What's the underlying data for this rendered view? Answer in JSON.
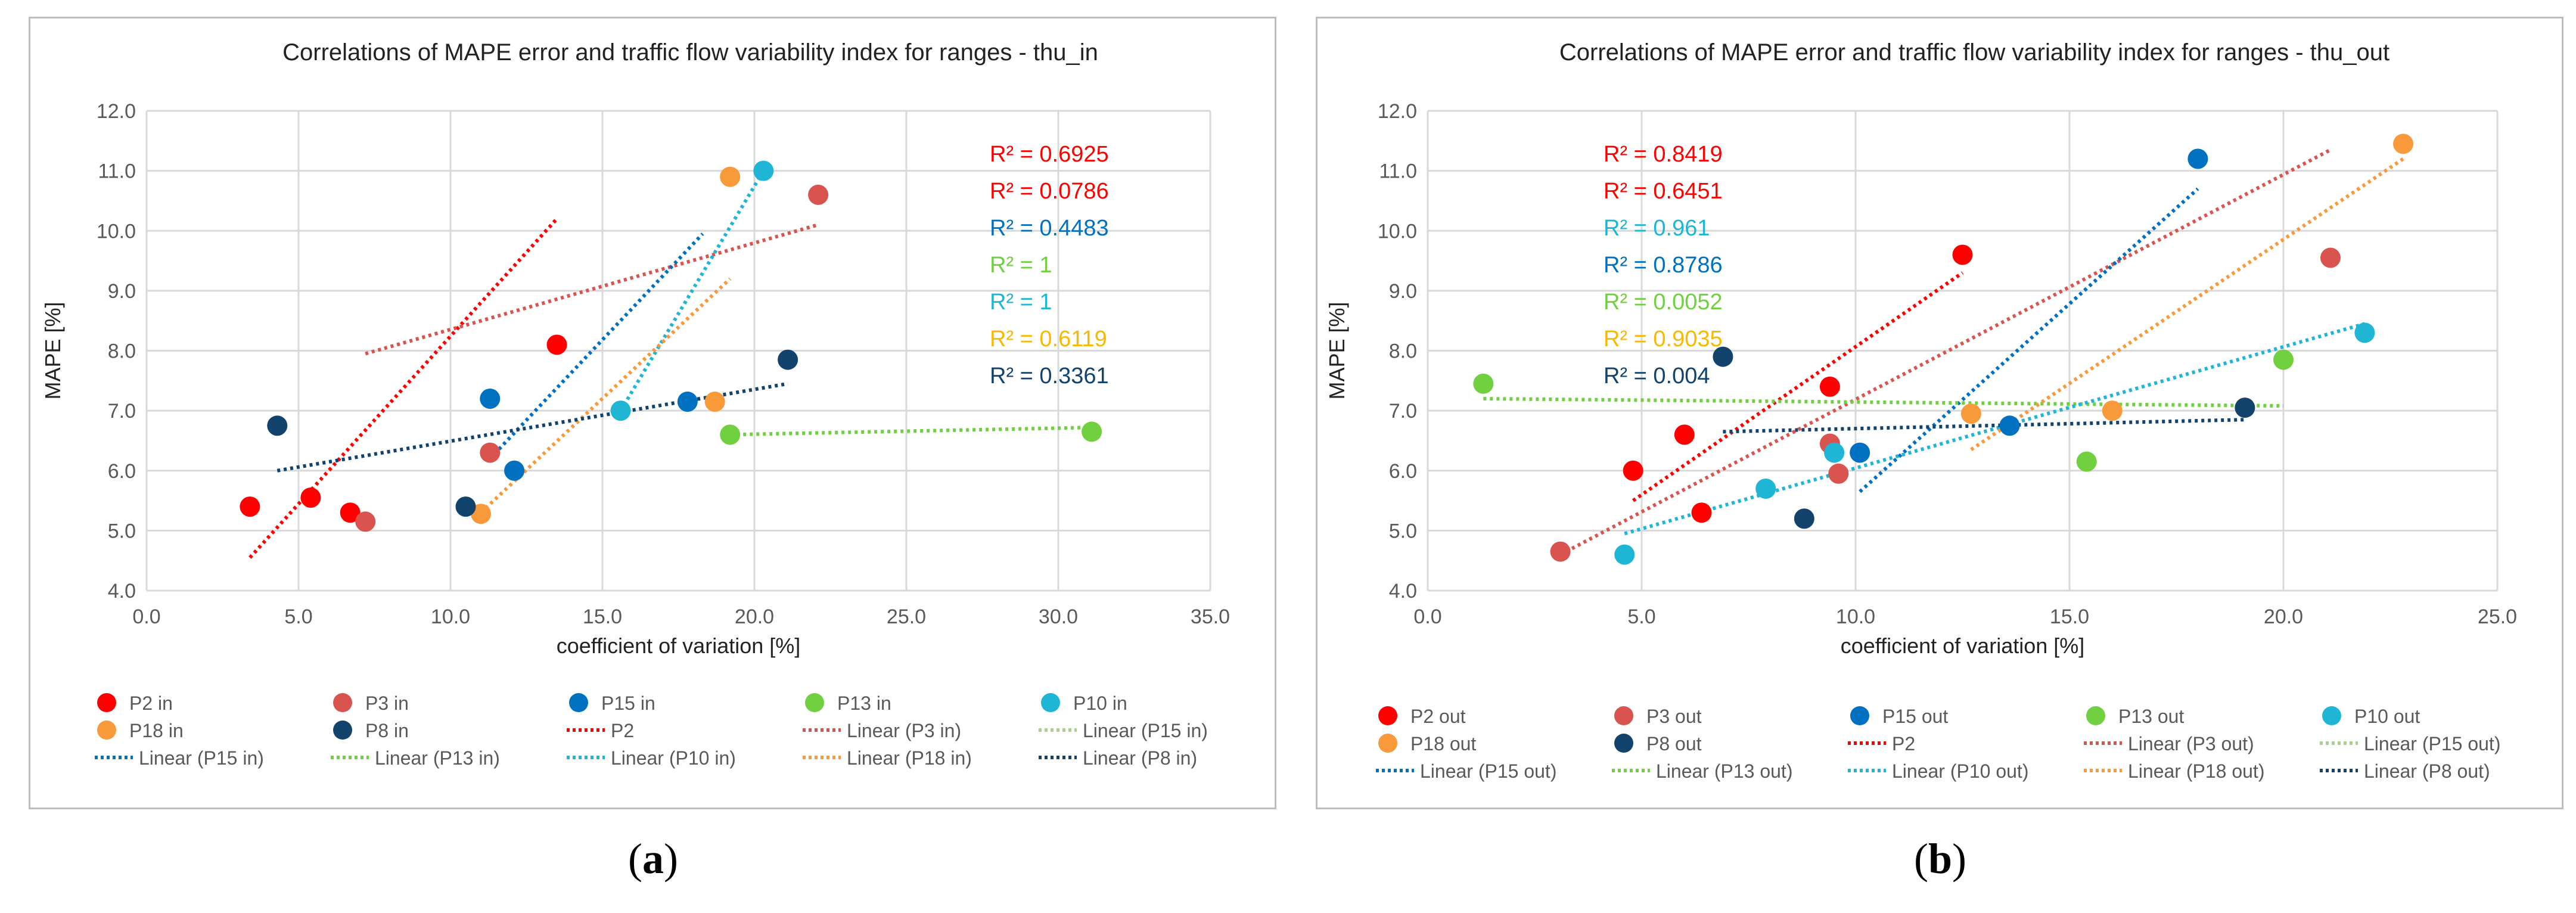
{
  "sublabels": {
    "a": "a",
    "b": "b",
    "open": "(",
    "close": ")"
  },
  "chart_data": [
    {
      "type": "scatter",
      "title": "Correlations of MAPE error and traffic flow variability index for ranges - thu_in",
      "xlabel": "coefficient of variation [%]",
      "ylabel": "MAPE [%]",
      "xlim": [
        0,
        35
      ],
      "ylim": [
        4,
        12
      ],
      "xticks": [
        "0.0",
        "5.0",
        "10.0",
        "15.0",
        "20.0",
        "25.0",
        "30.0",
        "35.0"
      ],
      "yticks": [
        "4.0",
        "5.0",
        "6.0",
        "7.0",
        "8.0",
        "9.0",
        "10.0",
        "11.0",
        "12.0"
      ],
      "series": [
        {
          "name": "P2 in",
          "color": "#ff0000",
          "points": [
            [
              3.4,
              5.4
            ],
            [
              5.4,
              5.55
            ],
            [
              6.7,
              5.3
            ],
            [
              13.5,
              8.1
            ]
          ],
          "trend": [
            [
              3.4,
              4.55
            ],
            [
              13.5,
              10.2
            ]
          ]
        },
        {
          "name": "P3 in",
          "color": "#d9534f",
          "points": [
            [
              7.2,
              5.15
            ],
            [
              11.3,
              6.3
            ],
            [
              22.1,
              10.6
            ]
          ],
          "trend": [
            [
              7.2,
              7.95
            ],
            [
              22.1,
              10.1
            ]
          ]
        },
        {
          "name": "P15 in",
          "color": "#0070c0",
          "points": [
            [
              11.3,
              7.2
            ],
            [
              12.1,
              6.0
            ],
            [
              17.8,
              7.15
            ]
          ],
          "trend": [
            [
              11.3,
              6.2
            ],
            [
              18.3,
              9.95
            ]
          ]
        },
        {
          "name": "P13 in",
          "color": "#70d040",
          "points": [
            [
              19.2,
              6.6
            ],
            [
              31.1,
              6.65
            ]
          ],
          "trend": [
            [
              19.2,
              6.6
            ],
            [
              31.1,
              6.72
            ]
          ]
        },
        {
          "name": "P10 in",
          "color": "#1fb5d5",
          "points": [
            [
              15.6,
              7.0
            ],
            [
              20.3,
              11.0
            ]
          ],
          "trend": [
            [
              15.6,
              7.0
            ],
            [
              20.3,
              11.0
            ]
          ]
        },
        {
          "name": "P18 in",
          "color": "#f8993a",
          "points": [
            [
              11.0,
              5.28
            ],
            [
              18.7,
              7.15
            ],
            [
              19.2,
              10.9
            ]
          ],
          "trend": [
            [
              11.0,
              5.3
            ],
            [
              19.2,
              9.2
            ]
          ]
        },
        {
          "name": "P8 in",
          "color": "#12436d",
          "points": [
            [
              4.3,
              6.75
            ],
            [
              10.5,
              5.4
            ],
            [
              21.1,
              7.85
            ]
          ],
          "trend": [
            [
              4.3,
              6.0
            ],
            [
              21.1,
              7.45
            ]
          ]
        }
      ],
      "r2": [
        {
          "text": "R² = 0.6925",
          "color": "#ff0000"
        },
        {
          "text": "R² = 0.0786",
          "color": "#ff0000"
        },
        {
          "text": "R² = 0.4483",
          "color": "#0070c0"
        },
        {
          "text": "R² = 1",
          "color": "#70d040"
        },
        {
          "text": "R² = 1",
          "color": "#1fb5d5"
        },
        {
          "text": "R² = 0.6119",
          "color": "#f8b900"
        },
        {
          "text": "R² = 0.3361",
          "color": "#12436d"
        }
      ],
      "legend_position": "bottom",
      "legend": [
        {
          "label": "P2 in",
          "kind": "marker",
          "color": "#ff0000"
        },
        {
          "label": "P3 in",
          "kind": "marker",
          "color": "#d9534f"
        },
        {
          "label": "P15 in",
          "kind": "marker",
          "color": "#0070c0"
        },
        {
          "label": "P13 in",
          "kind": "marker",
          "color": "#70d040"
        },
        {
          "label": "P10 in",
          "kind": "marker",
          "color": "#1fb5d5"
        },
        {
          "label": "P18 in",
          "kind": "marker",
          "color": "#f8993a"
        },
        {
          "label": "P8 in",
          "kind": "marker",
          "color": "#12436d"
        },
        {
          "label": "P2",
          "kind": "line",
          "color": "#ff0000"
        },
        {
          "label": "Linear (P3 in)",
          "kind": "line",
          "color": "#d9534f"
        },
        {
          "label": "Linear (P15 in)",
          "kind": "line",
          "color": "#a9d18e"
        },
        {
          "label": "Linear (P15 in)",
          "kind": "line",
          "color": "#0070c0"
        },
        {
          "label": "Linear (P13 in)",
          "kind": "line",
          "color": "#70d040"
        },
        {
          "label": "Linear (P10 in)",
          "kind": "line",
          "color": "#1fb5d5"
        },
        {
          "label": "Linear (P18 in)",
          "kind": "line",
          "color": "#f8993a"
        },
        {
          "label": "Linear (P8 in)",
          "kind": "line",
          "color": "#12436d"
        }
      ]
    },
    {
      "type": "scatter",
      "title": "Correlations of MAPE error and traffic flow variability index for ranges - thu_out",
      "xlabel": "coefficient of variation [%]",
      "ylabel": "MAPE [%]",
      "xlim": [
        0,
        25
      ],
      "ylim": [
        4,
        12
      ],
      "xticks": [
        "0.0",
        "5.0",
        "10.0",
        "15.0",
        "20.0",
        "25.0"
      ],
      "yticks": [
        "4.0",
        "5.0",
        "6.0",
        "7.0",
        "8.0",
        "9.0",
        "10.0",
        "11.0",
        "12.0"
      ],
      "series": [
        {
          "name": "P2 out",
          "color": "#ff0000",
          "points": [
            [
              4.8,
              6.0
            ],
            [
              6.0,
              6.6
            ],
            [
              6.4,
              5.3
            ],
            [
              9.4,
              7.4
            ],
            [
              12.5,
              9.6
            ]
          ],
          "trend": [
            [
              4.8,
              5.5
            ],
            [
              12.5,
              9.3
            ]
          ]
        },
        {
          "name": "P3 out",
          "color": "#d9534f",
          "points": [
            [
              3.1,
              4.65
            ],
            [
              9.4,
              6.45
            ],
            [
              9.6,
              5.95
            ],
            [
              21.1,
              9.55
            ]
          ],
          "trend": [
            [
              3.1,
              4.6
            ],
            [
              21.1,
              11.35
            ]
          ]
        },
        {
          "name": "P15 out",
          "color": "#0070c0",
          "points": [
            [
              10.1,
              6.3
            ],
            [
              13.6,
              6.75
            ],
            [
              18.0,
              11.2
            ]
          ],
          "trend": [
            [
              10.1,
              5.65
            ],
            [
              18.0,
              10.7
            ]
          ]
        },
        {
          "name": "P13 out",
          "color": "#70d040",
          "points": [
            [
              1.3,
              7.45
            ],
            [
              15.4,
              6.15
            ],
            [
              20.0,
              7.85
            ]
          ],
          "trend": [
            [
              1.3,
              7.2
            ],
            [
              20.0,
              7.08
            ]
          ]
        },
        {
          "name": "P10 out",
          "color": "#1fb5d5",
          "points": [
            [
              4.6,
              4.6
            ],
            [
              7.9,
              5.7
            ],
            [
              9.5,
              6.3
            ],
            [
              21.9,
              8.3
            ]
          ],
          "trend": [
            [
              4.6,
              4.95
            ],
            [
              21.9,
              8.45
            ]
          ]
        },
        {
          "name": "P18 out",
          "color": "#f8993a",
          "points": [
            [
              12.7,
              6.95
            ],
            [
              16.0,
              7.0
            ],
            [
              22.8,
              11.45
            ]
          ],
          "trend": [
            [
              12.7,
              6.35
            ],
            [
              22.8,
              11.2
            ]
          ]
        },
        {
          "name": "P8 out",
          "color": "#12436d",
          "points": [
            [
              6.9,
              7.9
            ],
            [
              8.8,
              5.2
            ],
            [
              19.1,
              7.05
            ]
          ],
          "trend": [
            [
              6.9,
              6.65
            ],
            [
              19.1,
              6.85
            ]
          ]
        }
      ],
      "r2": [
        {
          "text": "R² = 0.8419",
          "color": "#ff0000"
        },
        {
          "text": "R² = 0.6451",
          "color": "#ff0000"
        },
        {
          "text": "R² = 0.961",
          "color": "#1fb5d5"
        },
        {
          "text": "R² = 0.8786",
          "color": "#0070c0"
        },
        {
          "text": "R² = 0.0052",
          "color": "#70d040"
        },
        {
          "text": "R² = 0.9035",
          "color": "#f8b900"
        },
        {
          "text": "R² = 0.004",
          "color": "#12436d"
        }
      ],
      "legend_position": "bottom",
      "legend": [
        {
          "label": "P2 out",
          "kind": "marker",
          "color": "#ff0000"
        },
        {
          "label": "P3 out",
          "kind": "marker",
          "color": "#d9534f"
        },
        {
          "label": "P15 out",
          "kind": "marker",
          "color": "#0070c0"
        },
        {
          "label": "P13 out",
          "kind": "marker",
          "color": "#70d040"
        },
        {
          "label": "P10 out",
          "kind": "marker",
          "color": "#1fb5d5"
        },
        {
          "label": "P18 out",
          "kind": "marker",
          "color": "#f8993a"
        },
        {
          "label": "P8 out",
          "kind": "marker",
          "color": "#12436d"
        },
        {
          "label": "P2",
          "kind": "line",
          "color": "#ff0000"
        },
        {
          "label": "Linear (P3 out)",
          "kind": "line",
          "color": "#d9534f"
        },
        {
          "label": "Linear (P15 out)",
          "kind": "line",
          "color": "#a9d18e"
        },
        {
          "label": "Linear (P15 out)",
          "kind": "line",
          "color": "#0070c0"
        },
        {
          "label": "Linear (P13 out)",
          "kind": "line",
          "color": "#70d040"
        },
        {
          "label": "Linear (P10 out)",
          "kind": "line",
          "color": "#1fb5d5"
        },
        {
          "label": "Linear (P18 out)",
          "kind": "line",
          "color": "#f8993a"
        },
        {
          "label": "Linear (P8 out)",
          "kind": "line",
          "color": "#12436d"
        }
      ]
    }
  ]
}
